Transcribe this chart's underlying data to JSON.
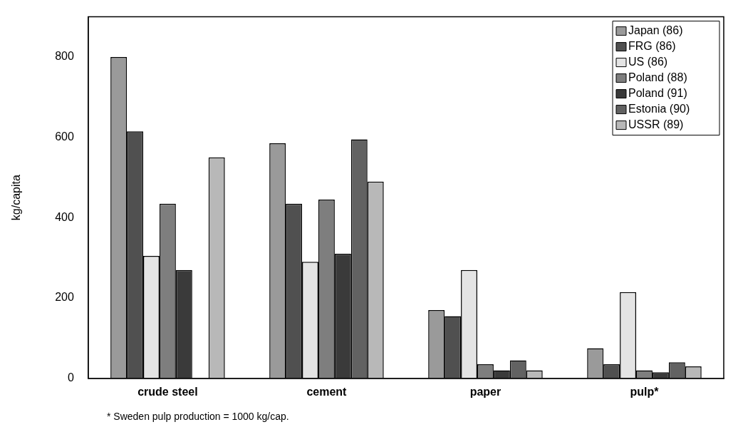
{
  "chart_data": {
    "type": "bar",
    "ylabel": "kg/capita",
    "categories": [
      "crude steel",
      "cement",
      "paper",
      "pulp*"
    ],
    "series": [
      {
        "name": "Japan (86)",
        "color": "#9a9a9a",
        "values": [
          800,
          585,
          170,
          75
        ]
      },
      {
        "name": "FRG (86)",
        "color": "#505050",
        "values": [
          615,
          435,
          155,
          35
        ]
      },
      {
        "name": "US (86)",
        "color": "#e4e4e4",
        "values": [
          305,
          290,
          270,
          215
        ]
      },
      {
        "name": "Poland (88)",
        "color": "#7e7e7e",
        "values": [
          435,
          445,
          35,
          20
        ]
      },
      {
        "name": "Poland (91)",
        "color": "#3a3a3a",
        "values": [
          270,
          310,
          20,
          15
        ]
      },
      {
        "name": "Estonia (90)",
        "color": "#626262",
        "values": [
          null,
          595,
          45,
          40
        ]
      },
      {
        "name": "USSR (89)",
        "color": "#b8b8b8",
        "values": [
          550,
          490,
          20,
          30
        ]
      }
    ],
    "ylim": [
      0,
      900
    ],
    "yticks": [
      0,
      200,
      400,
      600,
      800
    ],
    "grid": false,
    "legend": "top right",
    "annotations": [
      "* Sweden pulp production = 1000 kg/cap."
    ]
  }
}
